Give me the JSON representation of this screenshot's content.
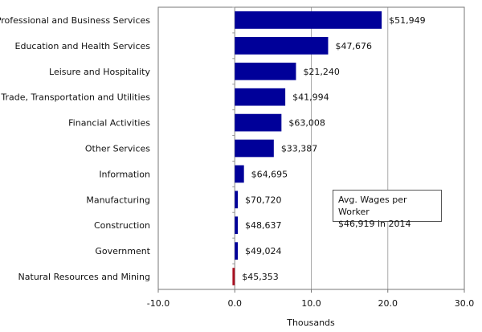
{
  "chart_data": {
    "type": "bar",
    "orientation": "horizontal",
    "title": "",
    "xlabel": "Thousands",
    "ylabel": "",
    "xlim": [
      -10,
      30
    ],
    "xticks": [
      -10,
      0,
      10,
      20,
      30
    ],
    "xtick_labels": [
      "-10.0",
      "0.0",
      "10.0",
      "20.0",
      "30.0"
    ],
    "grid": "vertical",
    "categories": [
      "Professional and Business Services",
      "Education and Health Services",
      "Leisure and Hospitality",
      "Trade, Transportation and Utilities",
      "Financial Activities",
      "Other Services",
      "Information",
      "Manufacturing",
      "Construction",
      "Government",
      "Natural Resources and Mining"
    ],
    "values": [
      19.2,
      12.2,
      8.0,
      6.6,
      6.1,
      5.1,
      1.2,
      0.4,
      0.4,
      0.4,
      -0.3
    ],
    "data_labels": [
      "$51,949",
      "$47,676",
      "$21,240",
      "$41,994",
      "$63,008",
      "$33,387",
      "$64,695",
      "$70,720",
      "$48,637",
      "$49,024",
      "$45,353"
    ],
    "colors": {
      "positive": "#000099",
      "negative": "#aa1122"
    },
    "annotation": {
      "line1": "Avg. Wages per Worker",
      "line2": "$46,919 in 2014",
      "placement": "center-right"
    }
  }
}
